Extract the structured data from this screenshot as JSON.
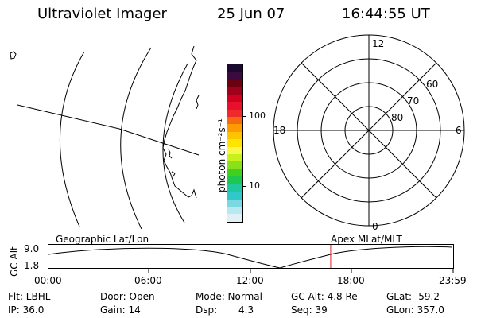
{
  "header": {
    "instrument": "Ultraviolet Imager",
    "date": "25 Jun 07",
    "time": "16:44:55 UT"
  },
  "colorbar": {
    "unit_label": "photon cm⁻²s⁻¹",
    "ticks": [
      "100",
      "10"
    ],
    "colors": [
      "#1a0a2e",
      "#3b0a3f",
      "#6b0010",
      "#a0001a",
      "#d00020",
      "#e8102c",
      "#f02a2a",
      "#f56a10",
      "#ff9a00",
      "#ffc400",
      "#ffe400",
      "#f6f84a",
      "#c8f01a",
      "#8ae01a",
      "#40d020",
      "#1ec850",
      "#20c8a0",
      "#30c8c8",
      "#7ad8e0",
      "#b8e8f0",
      "#e0f0f4"
    ]
  },
  "polar": {
    "labels": {
      "top": "12",
      "left": "18",
      "right": "6",
      "bottom": "0",
      "ring60": "60",
      "ring70": "70",
      "ring80": "80"
    }
  },
  "timeline": {
    "geo_label": "Geographic Lat/Lon",
    "apex_label": "Apex MLat/MLT",
    "y_title": "GC Alt",
    "y_ticks": [
      "9.0",
      "1.8"
    ],
    "x_ticks": [
      "00:00",
      "06:00",
      "12:00",
      "18:00",
      "23:59"
    ],
    "marker_color": "#e02020",
    "marker_time_hours": 16.75
  },
  "footer": {
    "row1": {
      "filter": "Flt: LBHL",
      "door": "Door: Open",
      "mode": "Mode: Normal",
      "gc_alt": "GC Alt: 4.8 Re",
      "glat": "GLat: -59.2"
    },
    "row2": {
      "ip": "IP: 36.0",
      "gain": "Gain: 14",
      "dsp_label": "Dsp:",
      "dsp_value": "4.3",
      "seq": "Seq: 39",
      "glon": "GLon: 357.0"
    }
  }
}
